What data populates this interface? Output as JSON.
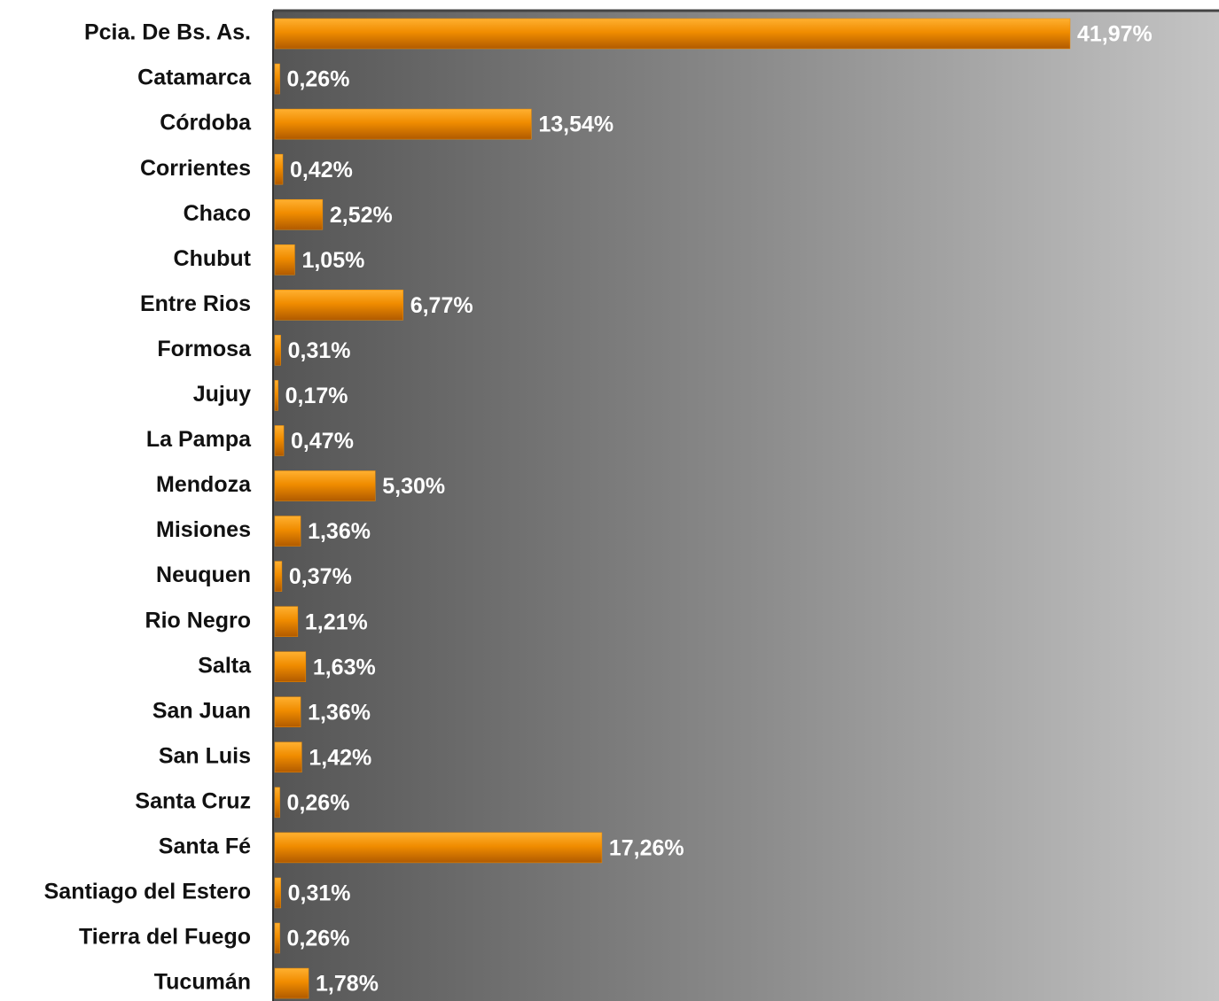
{
  "chart_data": {
    "type": "barh",
    "categories": [
      "Pcia. De Bs. As.",
      "Catamarca",
      "Córdoba",
      "Corrientes",
      "Chaco",
      "Chubut",
      "Entre Rios",
      "Formosa",
      "Jujuy",
      "La Pampa",
      "Mendoza",
      "Misiones",
      "Neuquen",
      "Rio Negro",
      "Salta",
      "San Juan",
      "San Luis",
      "Santa Cruz",
      "Santa Fé",
      "Santiago del Estero",
      "Tierra del Fuego",
      "Tucumán"
    ],
    "values": [
      41.97,
      0.26,
      13.54,
      0.42,
      2.52,
      1.05,
      6.77,
      0.31,
      0.17,
      0.47,
      5.3,
      1.36,
      0.37,
      1.21,
      1.63,
      1.36,
      1.42,
      0.26,
      17.26,
      0.31,
      0.26,
      1.78
    ],
    "value_labels": [
      "41,97%",
      "0,26%",
      "13,54%",
      "0,42%",
      "2,52%",
      "1,05%",
      "6,77%",
      "0,31%",
      "0,17%",
      "0,47%",
      "5,30%",
      "1,36%",
      "0,37%",
      "1,21%",
      "1,63%",
      "1,36%",
      "1,42%",
      "0,26%",
      "17,26%",
      "0,31%",
      "0,26%",
      "1,78%"
    ],
    "color": "#f08c00"
  }
}
